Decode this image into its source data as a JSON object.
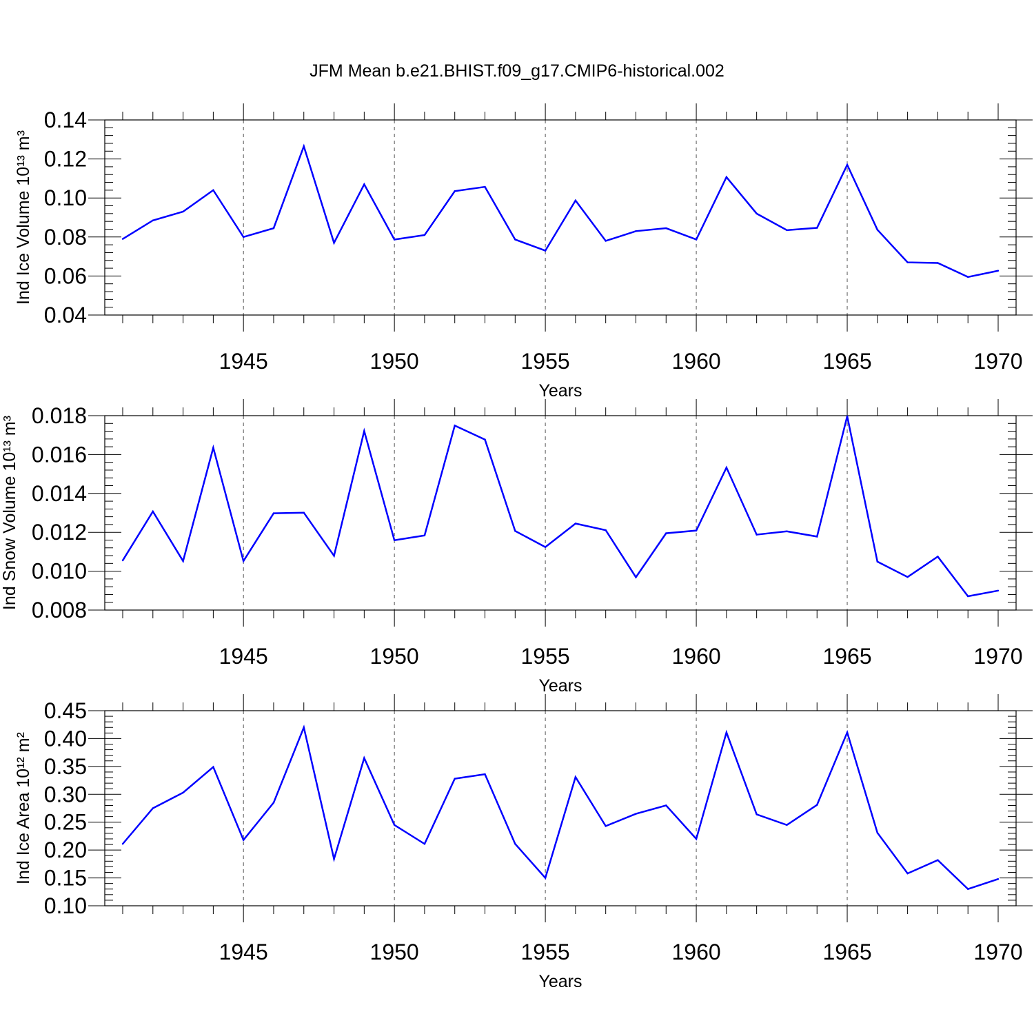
{
  "title": "JFM Mean b.e21.BHIST.f09_g17.CMIP6-historical.002",
  "colors": {
    "line": "#0000ff",
    "frame": "#000000",
    "grid": "#555555"
  },
  "chart_data": [
    {
      "type": "line",
      "ylabel": "Ind Ice Volume 10¹³ m³",
      "xlabel": "Years",
      "grid": "dashed vertical lines at labeled years",
      "xlim": [
        1941,
        1970
      ],
      "ylim": [
        0.04,
        0.14
      ],
      "xticks": [
        1945,
        1950,
        1955,
        1960,
        1965,
        1970
      ],
      "yticks": [
        "0.04",
        "0.06",
        "0.08",
        "0.10",
        "0.12",
        "0.14"
      ],
      "x": [
        1941,
        1942,
        1943,
        1944,
        1945,
        1946,
        1947,
        1948,
        1949,
        1950,
        1951,
        1952,
        1953,
        1954,
        1955,
        1956,
        1957,
        1958,
        1959,
        1960,
        1961,
        1962,
        1963,
        1964,
        1965,
        1966,
        1967,
        1968,
        1969,
        1970
      ],
      "series": [
        {
          "values": [
            0.079,
            0.0885,
            0.093,
            0.104,
            0.08,
            0.0845,
            0.1265,
            0.077,
            0.107,
            0.0787,
            0.081,
            0.1035,
            0.1057,
            0.0787,
            0.073,
            0.0987,
            0.078,
            0.083,
            0.0845,
            0.0787,
            0.1107,
            0.092,
            0.0835,
            0.0847,
            0.117,
            0.0837,
            0.067,
            0.0667,
            0.0595,
            0.0627
          ]
        }
      ]
    },
    {
      "type": "line",
      "ylabel": "Ind Snow Volume 10¹³ m³",
      "xlabel": "Years",
      "grid": "dashed vertical lines at labeled years",
      "xlim": [
        1941,
        1970
      ],
      "ylim": [
        0.008,
        0.018
      ],
      "xticks": [
        1945,
        1950,
        1955,
        1960,
        1965,
        1970
      ],
      "yticks": [
        "0.008",
        "0.010",
        "0.012",
        "0.014",
        "0.016",
        "0.018"
      ],
      "x": [
        1941,
        1942,
        1943,
        1944,
        1945,
        1946,
        1947,
        1948,
        1949,
        1950,
        1951,
        1952,
        1953,
        1954,
        1955,
        1956,
        1957,
        1958,
        1959,
        1960,
        1961,
        1962,
        1963,
        1964,
        1965,
        1966,
        1967,
        1968,
        1969,
        1970
      ],
      "series": [
        {
          "values": [
            0.01055,
            0.01307,
            0.01052,
            0.01635,
            0.01052,
            0.01298,
            0.01301,
            0.01079,
            0.01721,
            0.01159,
            0.01184,
            0.01749,
            0.01677,
            0.01207,
            0.01124,
            0.01245,
            0.01211,
            0.00969,
            0.01195,
            0.01209,
            0.01533,
            0.01188,
            0.01205,
            0.01178,
            0.01797,
            0.01049,
            0.0097,
            0.01075,
            0.00871,
            0.009
          ]
        }
      ]
    },
    {
      "type": "line",
      "ylabel": "Ind Ice Area 10¹² m²",
      "xlabel": "Years",
      "grid": "dashed vertical lines at labeled years",
      "xlim": [
        1941,
        1970
      ],
      "ylim": [
        0.1,
        0.45
      ],
      "xticks": [
        1945,
        1950,
        1955,
        1960,
        1965,
        1970
      ],
      "yticks": [
        "0.10",
        "0.15",
        "0.20",
        "0.25",
        "0.30",
        "0.35",
        "0.40",
        "0.45"
      ],
      "x": [
        1941,
        1942,
        1943,
        1944,
        1945,
        1946,
        1947,
        1948,
        1949,
        1950,
        1951,
        1952,
        1953,
        1954,
        1955,
        1956,
        1957,
        1958,
        1959,
        1960,
        1961,
        1962,
        1963,
        1964,
        1965,
        1966,
        1967,
        1968,
        1969,
        1970
      ],
      "series": [
        {
          "values": [
            0.211,
            0.275,
            0.303,
            0.349,
            0.218,
            0.285,
            0.42,
            0.184,
            0.365,
            0.245,
            0.211,
            0.328,
            0.336,
            0.211,
            0.15,
            0.331,
            0.243,
            0.265,
            0.28,
            0.22,
            0.411,
            0.264,
            0.245,
            0.281,
            0.411,
            0.231,
            0.158,
            0.182,
            0.13,
            0.148
          ]
        }
      ]
    }
  ]
}
